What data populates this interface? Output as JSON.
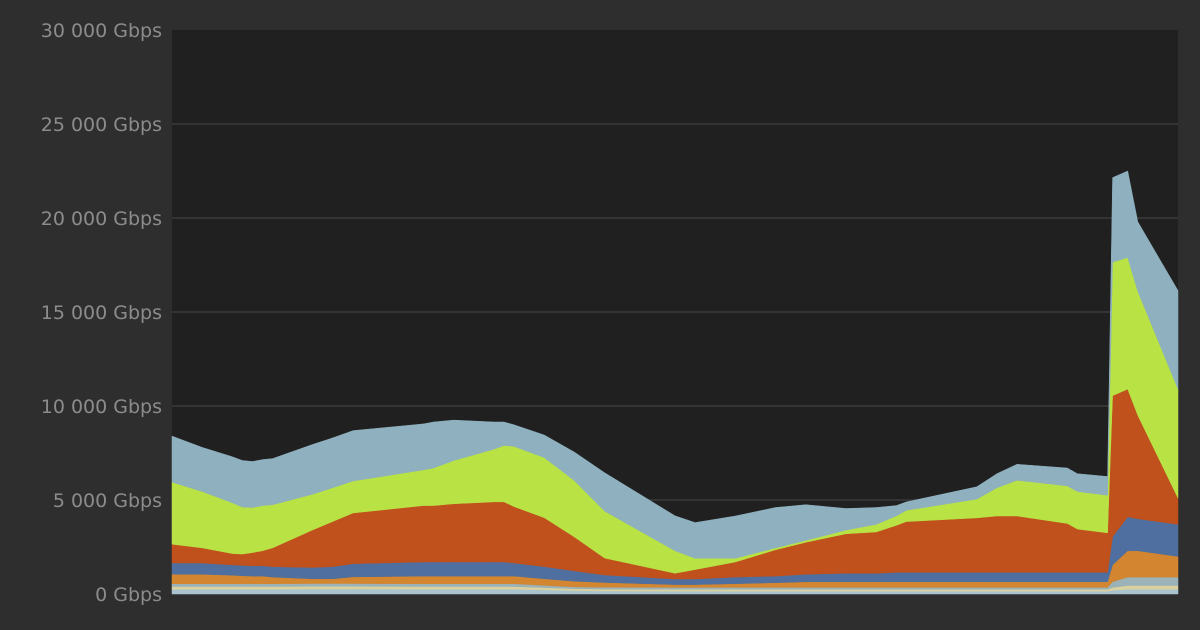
{
  "chart_data": {
    "type": "area",
    "stacked": true,
    "title": "",
    "xlabel": "",
    "ylabel": "",
    "ylim": [
      0,
      30000
    ],
    "y_ticks": [
      0,
      5000,
      10000,
      15000,
      20000,
      25000,
      30000
    ],
    "y_tick_labels": [
      "0 Gbps",
      "5 000 Gbps",
      "10 000 Gbps",
      "15 000 Gbps",
      "20 000 Gbps",
      "25 000 Gbps",
      "30 000 Gbps"
    ],
    "grid": true,
    "legend": "none",
    "colors": {
      "page_background": "#2e2e2e",
      "plot_background": "#202020",
      "grid": "#343434",
      "tick_text": "#8c8c8c"
    },
    "x": [
      0,
      3,
      6,
      7,
      8,
      9,
      10,
      14,
      16,
      18,
      25,
      26,
      28,
      32,
      33,
      34,
      37,
      40,
      43,
      50,
      52,
      56,
      60,
      63,
      67,
      70,
      72,
      73,
      80,
      82,
      84,
      89,
      90,
      93,
      93.5,
      95,
      96,
      100
    ],
    "series": [
      {
        "color": "#a9c4cf",
        "values": [
          250,
          250,
          250,
          250,
          250,
          250,
          250,
          260,
          260,
          260,
          250,
          250,
          250,
          250,
          250,
          250,
          220,
          180,
          160,
          150,
          150,
          150,
          150,
          150,
          150,
          150,
          150,
          150,
          150,
          150,
          150,
          150,
          150,
          150,
          200,
          250,
          250,
          250
        ]
      },
      {
        "color": "#d9d2a0",
        "values": [
          150,
          150,
          150,
          150,
          150,
          150,
          150,
          150,
          150,
          150,
          150,
          150,
          150,
          150,
          150,
          150,
          120,
          100,
          100,
          100,
          100,
          100,
          100,
          100,
          100,
          100,
          100,
          100,
          100,
          100,
          100,
          100,
          100,
          100,
          150,
          200,
          200,
          200
        ]
      },
      {
        "color": "#9ab2b8",
        "values": [
          150,
          150,
          150,
          150,
          150,
          150,
          150,
          150,
          150,
          150,
          150,
          150,
          150,
          150,
          150,
          150,
          120,
          100,
          100,
          100,
          100,
          100,
          100,
          100,
          100,
          100,
          100,
          100,
          100,
          100,
          100,
          100,
          100,
          100,
          300,
          450,
          450,
          450
        ]
      },
      {
        "color": "#d3862f",
        "values": [
          500,
          500,
          450,
          420,
          400,
          400,
          350,
          250,
          250,
          350,
          400,
          400,
          400,
          400,
          400,
          400,
          350,
          300,
          250,
          150,
          150,
          200,
          250,
          300,
          300,
          300,
          300,
          300,
          300,
          300,
          300,
          300,
          300,
          300,
          900,
          1400,
          1400,
          1100
        ]
      },
      {
        "color": "#4e6f9f",
        "values": [
          600,
          600,
          550,
          550,
          550,
          550,
          550,
          600,
          650,
          700,
          750,
          750,
          750,
          750,
          750,
          700,
          650,
          550,
          400,
          300,
          300,
          350,
          350,
          400,
          450,
          450,
          500,
          500,
          500,
          500,
          500,
          500,
          500,
          500,
          1500,
          1800,
          1700,
          1700
        ]
      },
      {
        "color": "#c0501c",
        "values": [
          1000,
          800,
          600,
          600,
          700,
          800,
          1000,
          2000,
          2400,
          2700,
          3000,
          3000,
          3100,
          3200,
          3200,
          3000,
          2600,
          1800,
          900,
          300,
          500,
          800,
          1400,
          1700,
          2100,
          2200,
          2500,
          2700,
          2900,
          3000,
          3000,
          2600,
          2300,
          2100,
          7500,
          6800,
          5500,
          1400
        ]
      },
      {
        "color": "#b9e245",
        "values": [
          3300,
          3000,
          2700,
          2500,
          2400,
          2400,
          2300,
          1900,
          1800,
          1700,
          1900,
          2000,
          2300,
          2800,
          3000,
          3200,
          3200,
          3000,
          2500,
          1200,
          600,
          200,
          100,
          100,
          200,
          400,
          500,
          600,
          1000,
          1500,
          1900,
          2000,
          2000,
          2000,
          7100,
          7000,
          6600,
          5800
        ]
      },
      {
        "color": "#8fb1bf",
        "values": [
          2450,
          2350,
          2450,
          2480,
          2450,
          2450,
          2450,
          2650,
          2650,
          2680,
          2450,
          2450,
          2150,
          1450,
          1250,
          1150,
          1200,
          1520,
          2040,
          1860,
          1900,
          2250,
          2150,
          1900,
          1150,
          900,
          550,
          450,
          650,
          750,
          850,
          950,
          950,
          1000,
          4500,
          4600,
          3700,
          5240
        ]
      }
    ]
  }
}
